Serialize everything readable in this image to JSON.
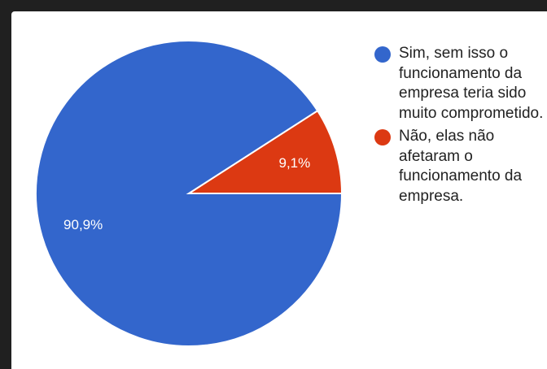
{
  "chart_data": {
    "type": "pie",
    "categories": [
      "Sim, sem isso o funcionamento da empresa teria sido muito comprometido.",
      "Não, elas não afetaram o funcionamento da empresa."
    ],
    "values": [
      90.9,
      9.1
    ],
    "slice_labels": [
      "90,9%",
      "9,1%"
    ],
    "colors": [
      "#3366cc",
      "#dc3912"
    ],
    "legend_position": "right",
    "start": "3 o'clock, counter-clockwise"
  },
  "colors": {
    "background": "#ffffff",
    "frame": "#202020",
    "text": "#222222",
    "slice_label": "#ffffff"
  }
}
